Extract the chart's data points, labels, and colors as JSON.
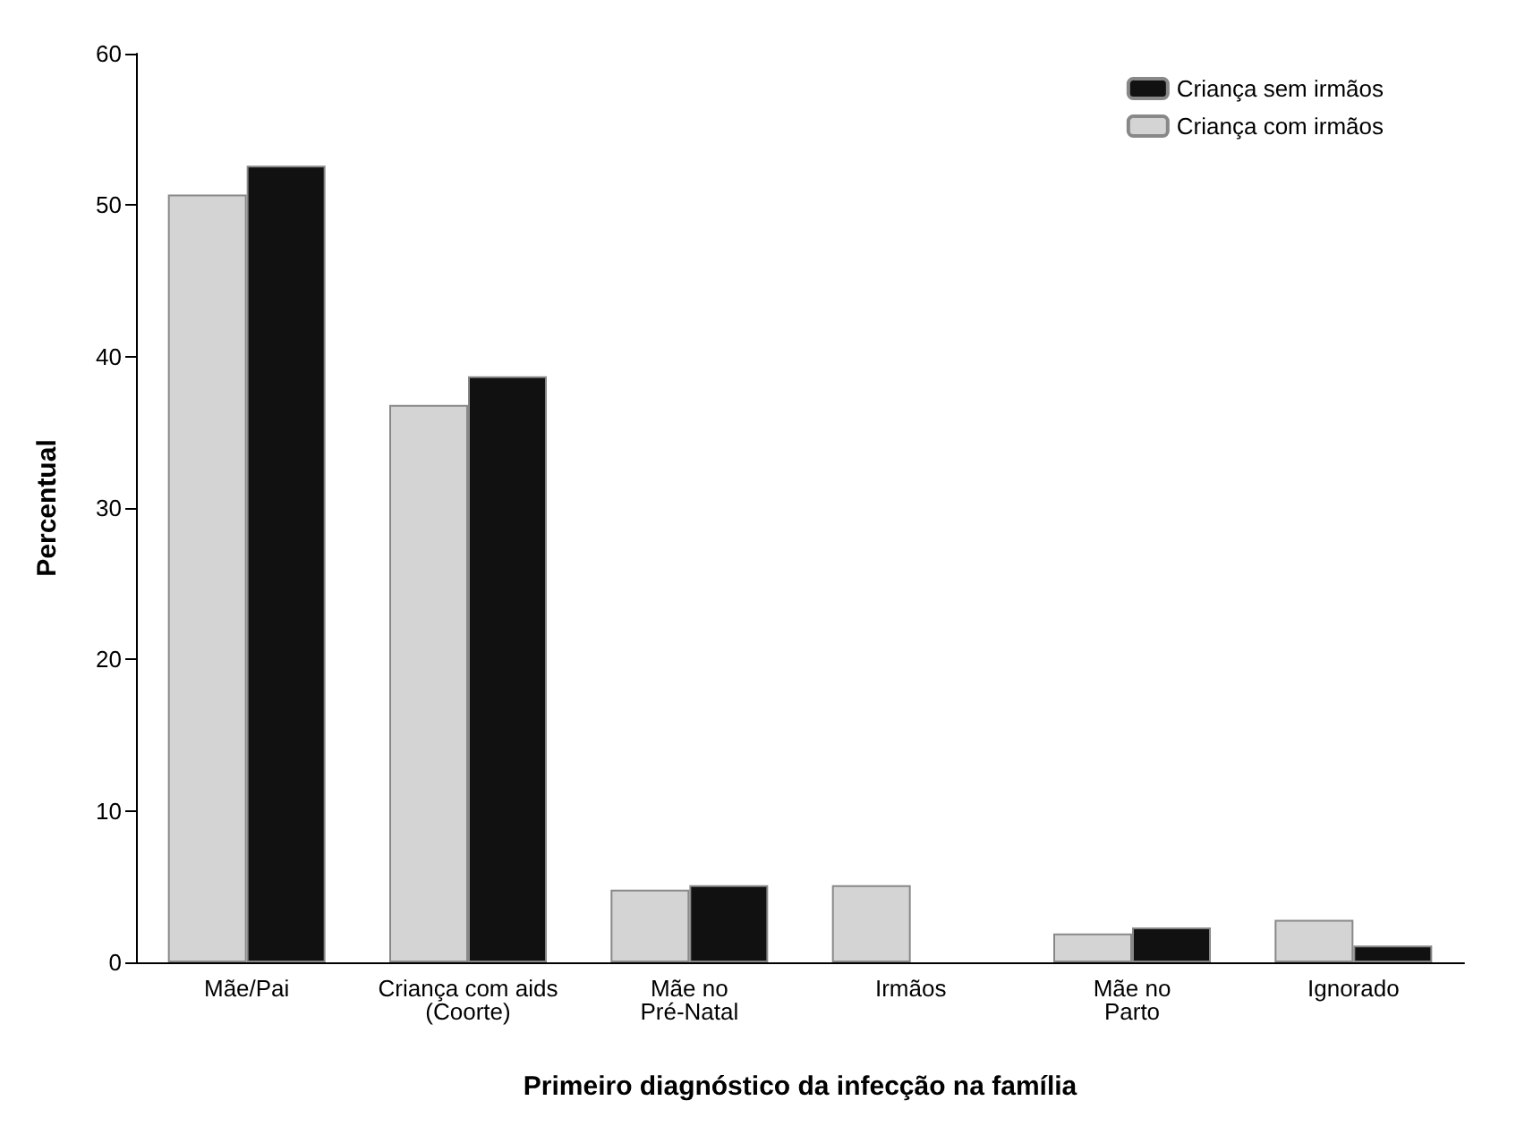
{
  "chart_data": {
    "type": "bar",
    "xlabel": "Primeiro diagnóstico da infecção na família",
    "ylabel": "Percentual",
    "categories": [
      "Mãe/Pai",
      "Criança com aids\n(Coorte)",
      "Mãe no\nPré-Natal",
      "Irmãos",
      "Mãe no\nParto",
      "Ignorado"
    ],
    "series": [
      {
        "name": "Criança com irmãos",
        "color": "#d4d4d4",
        "values": [
          50.7,
          36.8,
          4.8,
          5.1,
          1.9,
          2.8
        ]
      },
      {
        "name": "Criança sem irmãos",
        "color": "#111111",
        "values": [
          52.6,
          38.7,
          5.1,
          null,
          2.3,
          1.1
        ]
      }
    ],
    "ylim": [
      0,
      60
    ],
    "yticks": [
      0,
      10,
      20,
      30,
      40,
      50,
      60
    ],
    "grid": false,
    "legend": "top right"
  }
}
